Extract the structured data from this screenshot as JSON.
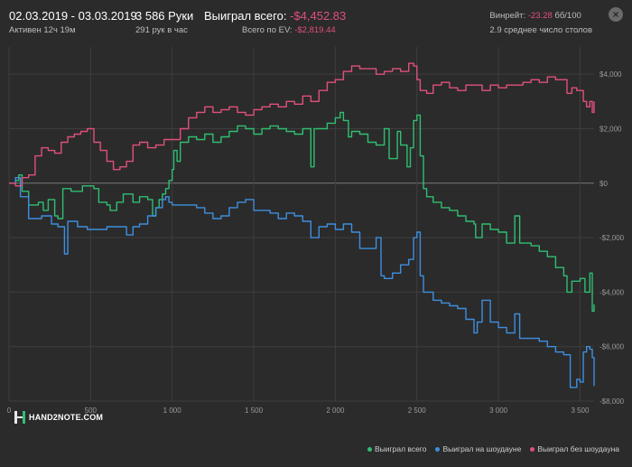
{
  "header": {
    "date_range": "02.03.2019 - 03.03.2019",
    "active_time": "Активен 12ч 19м",
    "hands_count": "3 586 Руки",
    "hands_per_hour": "291 рук в час",
    "won_total_label": "Выиграл всего:",
    "won_total_value": "-$4,452.83",
    "ev_label": "Всего по EV:",
    "ev_value": "-$2,819.44",
    "winrate_label": "Винрейт:",
    "winrate_value": "-23.28",
    "winrate_suffix": "бб/100",
    "avg_tables": "2.9 среднее число столов",
    "close_glyph": "×"
  },
  "logo": {
    "text": "HAND2NOTE.COM"
  },
  "colors": {
    "background": "#2b2b2b",
    "grid": "#3e3e3e",
    "zero_line": "#7a7a7a",
    "total": "#2fbf71",
    "showdown": "#3d8fe0",
    "no_showdown": "#e0507a"
  },
  "chart_data": {
    "type": "line",
    "xlim": [
      0,
      3586
    ],
    "ylim": [
      -8000,
      5000
    ],
    "x_ticks": [
      0,
      500,
      1000,
      1500,
      2000,
      2500,
      3000,
      3500
    ],
    "x_tick_labels": [
      "0",
      "500",
      "1 000",
      "1 500",
      "2 000",
      "2 500",
      "3 000",
      "3 500"
    ],
    "y_ticks": [
      4000,
      2000,
      0,
      -2000,
      -4000,
      -6000,
      -8000
    ],
    "y_tick_labels": [
      "$4,000",
      "$2,000",
      "$0",
      "-$2,000",
      "-$4,000",
      "-$6,000",
      "-$8,000"
    ],
    "grid": true,
    "legend_position": "bottom-right",
    "series": [
      {
        "name": "Выиграл всего",
        "color": "#2fbf71",
        "points": [
          [
            0,
            0
          ],
          [
            40,
            100
          ],
          [
            60,
            300
          ],
          [
            80,
            -300
          ],
          [
            120,
            -800
          ],
          [
            180,
            -700
          ],
          [
            210,
            -1000
          ],
          [
            240,
            -600
          ],
          [
            280,
            -1200
          ],
          [
            300,
            -1300
          ],
          [
            330,
            -200
          ],
          [
            380,
            -300
          ],
          [
            450,
            -100
          ],
          [
            520,
            -200
          ],
          [
            550,
            -700
          ],
          [
            600,
            -800
          ],
          [
            620,
            -1000
          ],
          [
            660,
            -700
          ],
          [
            700,
            -400
          ],
          [
            760,
            -700
          ],
          [
            800,
            -500
          ],
          [
            850,
            -600
          ],
          [
            880,
            -1200
          ],
          [
            900,
            -900
          ],
          [
            920,
            -600
          ],
          [
            940,
            -400
          ],
          [
            960,
            -200
          ],
          [
            980,
            100
          ],
          [
            1000,
            500
          ],
          [
            1010,
            1200
          ],
          [
            1030,
            800
          ],
          [
            1050,
            1500
          ],
          [
            1100,
            1700
          ],
          [
            1150,
            1600
          ],
          [
            1200,
            1800
          ],
          [
            1250,
            1500
          ],
          [
            1300,
            1700
          ],
          [
            1350,
            1900
          ],
          [
            1400,
            2100
          ],
          [
            1450,
            2000
          ],
          [
            1500,
            1800
          ],
          [
            1550,
            2000
          ],
          [
            1600,
            2100
          ],
          [
            1650,
            2000
          ],
          [
            1700,
            1900
          ],
          [
            1750,
            1800
          ],
          [
            1800,
            2000
          ],
          [
            1850,
            600
          ],
          [
            1870,
            2000
          ],
          [
            1900,
            2000
          ],
          [
            1950,
            2200
          ],
          [
            2000,
            2400
          ],
          [
            2030,
            2600
          ],
          [
            2050,
            2300
          ],
          [
            2080,
            1700
          ],
          [
            2100,
            1900
          ],
          [
            2150,
            1800
          ],
          [
            2200,
            1500
          ],
          [
            2250,
            1400
          ],
          [
            2300,
            2000
          ],
          [
            2330,
            900
          ],
          [
            2350,
            900
          ],
          [
            2380,
            1900
          ],
          [
            2400,
            1400
          ],
          [
            2440,
            600
          ],
          [
            2460,
            1300
          ],
          [
            2480,
            2300
          ],
          [
            2500,
            2500
          ],
          [
            2520,
            1000
          ],
          [
            2540,
            -200
          ],
          [
            2560,
            -500
          ],
          [
            2600,
            -700
          ],
          [
            2650,
            -900
          ],
          [
            2700,
            -1000
          ],
          [
            2750,
            -1200
          ],
          [
            2800,
            -1400
          ],
          [
            2850,
            -1500
          ],
          [
            2860,
            -2000
          ],
          [
            2900,
            -1500
          ],
          [
            2950,
            -1700
          ],
          [
            3000,
            -1800
          ],
          [
            3050,
            -2200
          ],
          [
            3100,
            -1200
          ],
          [
            3130,
            -2200
          ],
          [
            3200,
            -2300
          ],
          [
            3250,
            -2500
          ],
          [
            3300,
            -2700
          ],
          [
            3350,
            -3100
          ],
          [
            3400,
            -3400
          ],
          [
            3420,
            -4000
          ],
          [
            3450,
            -3600
          ],
          [
            3500,
            -3500
          ],
          [
            3530,
            -4000
          ],
          [
            3560,
            -3300
          ],
          [
            3575,
            -4700
          ],
          [
            3586,
            -4452.83
          ]
        ]
      },
      {
        "name": "Выиграл на шоудауне",
        "color": "#3d8fe0",
        "points": [
          [
            0,
            0
          ],
          [
            40,
            200
          ],
          [
            70,
            -500
          ],
          [
            120,
            -1300
          ],
          [
            200,
            -1200
          ],
          [
            260,
            -1500
          ],
          [
            300,
            -1600
          ],
          [
            340,
            -2600
          ],
          [
            360,
            -1400
          ],
          [
            420,
            -1600
          ],
          [
            480,
            -1700
          ],
          [
            540,
            -1700
          ],
          [
            600,
            -1600
          ],
          [
            680,
            -1600
          ],
          [
            720,
            -1900
          ],
          [
            760,
            -1600
          ],
          [
            800,
            -1500
          ],
          [
            850,
            -1200
          ],
          [
            900,
            -900
          ],
          [
            940,
            -600
          ],
          [
            960,
            -500
          ],
          [
            980,
            -700
          ],
          [
            1000,
            -800
          ],
          [
            1100,
            -800
          ],
          [
            1150,
            -900
          ],
          [
            1200,
            -1100
          ],
          [
            1250,
            -1300
          ],
          [
            1300,
            -1200
          ],
          [
            1350,
            -900
          ],
          [
            1400,
            -700
          ],
          [
            1450,
            -600
          ],
          [
            1500,
            -1000
          ],
          [
            1550,
            -1000
          ],
          [
            1600,
            -1100
          ],
          [
            1650,
            -1300
          ],
          [
            1700,
            -1100
          ],
          [
            1750,
            -1200
          ],
          [
            1800,
            -1400
          ],
          [
            1850,
            -2000
          ],
          [
            1900,
            -1600
          ],
          [
            1950,
            -1500
          ],
          [
            2000,
            -1700
          ],
          [
            2050,
            -1500
          ],
          [
            2100,
            -1800
          ],
          [
            2150,
            -2400
          ],
          [
            2200,
            -2400
          ],
          [
            2250,
            -2000
          ],
          [
            2280,
            -3400
          ],
          [
            2300,
            -3500
          ],
          [
            2350,
            -3300
          ],
          [
            2400,
            -3000
          ],
          [
            2450,
            -2800
          ],
          [
            2480,
            -2000
          ],
          [
            2500,
            -1800
          ],
          [
            2520,
            -3400
          ],
          [
            2540,
            -4000
          ],
          [
            2600,
            -4300
          ],
          [
            2650,
            -4400
          ],
          [
            2700,
            -4500
          ],
          [
            2750,
            -4600
          ],
          [
            2800,
            -5000
          ],
          [
            2850,
            -5500
          ],
          [
            2870,
            -5100
          ],
          [
            2900,
            -4300
          ],
          [
            2950,
            -5100
          ],
          [
            3000,
            -5300
          ],
          [
            3050,
            -5500
          ],
          [
            3100,
            -4800
          ],
          [
            3130,
            -5700
          ],
          [
            3200,
            -5700
          ],
          [
            3250,
            -5800
          ],
          [
            3300,
            -6000
          ],
          [
            3350,
            -6200
          ],
          [
            3400,
            -6300
          ],
          [
            3440,
            -7500
          ],
          [
            3480,
            -7200
          ],
          [
            3500,
            -7300
          ],
          [
            3520,
            -6200
          ],
          [
            3540,
            -6000
          ],
          [
            3560,
            -6100
          ],
          [
            3575,
            -6400
          ],
          [
            3586,
            -7450
          ]
        ]
      },
      {
        "name": "Выиграл без шоудауна",
        "color": "#e0507a",
        "points": [
          [
            0,
            0
          ],
          [
            40,
            -100
          ],
          [
            80,
            200
          ],
          [
            120,
            300
          ],
          [
            160,
            1000
          ],
          [
            200,
            1300
          ],
          [
            240,
            1200
          ],
          [
            280,
            1100
          ],
          [
            320,
            1500
          ],
          [
            360,
            1700
          ],
          [
            400,
            1800
          ],
          [
            440,
            1900
          ],
          [
            480,
            2000
          ],
          [
            520,
            1500
          ],
          [
            560,
            1200
          ],
          [
            600,
            800
          ],
          [
            640,
            500
          ],
          [
            680,
            600
          ],
          [
            720,
            800
          ],
          [
            760,
            1400
          ],
          [
            800,
            1500
          ],
          [
            850,
            1300
          ],
          [
            900,
            1400
          ],
          [
            950,
            1600
          ],
          [
            1000,
            1600
          ],
          [
            1050,
            2000
          ],
          [
            1100,
            2400
          ],
          [
            1150,
            2600
          ],
          [
            1200,
            2800
          ],
          [
            1250,
            2600
          ],
          [
            1300,
            2700
          ],
          [
            1350,
            2800
          ],
          [
            1400,
            2600
          ],
          [
            1450,
            2500
          ],
          [
            1500,
            2700
          ],
          [
            1550,
            2800
          ],
          [
            1600,
            2900
          ],
          [
            1650,
            2800
          ],
          [
            1700,
            3000
          ],
          [
            1750,
            2900
          ],
          [
            1800,
            3200
          ],
          [
            1850,
            3000
          ],
          [
            1900,
            3400
          ],
          [
            1950,
            3700
          ],
          [
            2000,
            3800
          ],
          [
            2050,
            4100
          ],
          [
            2100,
            4300
          ],
          [
            2150,
            4200
          ],
          [
            2200,
            4200
          ],
          [
            2250,
            4000
          ],
          [
            2300,
            4100
          ],
          [
            2350,
            4200
          ],
          [
            2400,
            4100
          ],
          [
            2450,
            4400
          ],
          [
            2480,
            4300
          ],
          [
            2500,
            3800
          ],
          [
            2520,
            3400
          ],
          [
            2560,
            3300
          ],
          [
            2600,
            3600
          ],
          [
            2650,
            3700
          ],
          [
            2700,
            3500
          ],
          [
            2750,
            3400
          ],
          [
            2800,
            3600
          ],
          [
            2850,
            3600
          ],
          [
            2900,
            3400
          ],
          [
            2950,
            3600
          ],
          [
            3000,
            3500
          ],
          [
            3050,
            3600
          ],
          [
            3100,
            3600
          ],
          [
            3150,
            3700
          ],
          [
            3200,
            3800
          ],
          [
            3250,
            3700
          ],
          [
            3300,
            3900
          ],
          [
            3350,
            3800
          ],
          [
            3400,
            3800
          ],
          [
            3420,
            3300
          ],
          [
            3450,
            3500
          ],
          [
            3480,
            3400
          ],
          [
            3520,
            3000
          ],
          [
            3540,
            2800
          ],
          [
            3560,
            3000
          ],
          [
            3575,
            2600
          ],
          [
            3586,
            3000
          ]
        ]
      }
    ]
  }
}
